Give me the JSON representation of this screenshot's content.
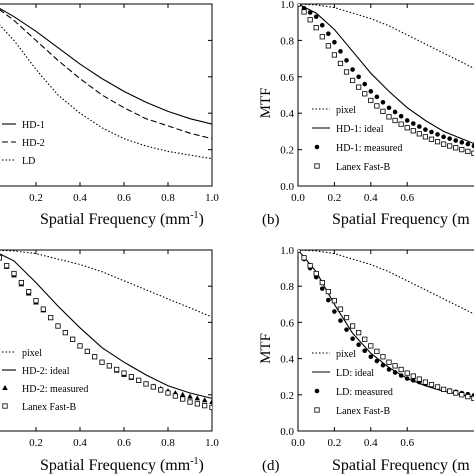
{
  "chart_data": [
    {
      "type": "line",
      "panel": "top-left",
      "label": "",
      "xlabel": "Spatial Frequency (mm",
      "xlabel_sup": "-1",
      "xlim": [
        0.0,
        1.0
      ],
      "ylim": [
        0.0,
        1.0
      ],
      "x_ticks": [
        "0.2",
        "0.4",
        "0.6",
        "0.8",
        "1.0"
      ],
      "y_ticks": [],
      "ylabel": "",
      "x": [
        0.0,
        0.1,
        0.2,
        0.3,
        0.4,
        0.5,
        0.6,
        0.7,
        0.8,
        0.9,
        1.0
      ],
      "series": [
        {
          "name": "HD-1",
          "style": "solid",
          "values": [
            1.0,
            0.93,
            0.85,
            0.76,
            0.67,
            0.59,
            0.52,
            0.46,
            0.41,
            0.37,
            0.34
          ]
        },
        {
          "name": "HD-2",
          "style": "dashed",
          "values": [
            1.0,
            0.91,
            0.8,
            0.69,
            0.59,
            0.5,
            0.43,
            0.37,
            0.33,
            0.29,
            0.26
          ]
        },
        {
          "name": "LD",
          "style": "dotted",
          "values": [
            0.93,
            0.8,
            0.64,
            0.5,
            0.4,
            0.32,
            0.26,
            0.22,
            0.19,
            0.17,
            0.15
          ]
        }
      ],
      "legend": [
        "HD-1",
        "HD-2",
        "LD"
      ]
    },
    {
      "type": "line",
      "panel": "top-right",
      "label": "(b)",
      "xlabel": "Spatial Frequency (m",
      "xlabel_sup": "",
      "xlim": [
        0.0,
        1.0
      ],
      "ylim": [
        0.0,
        1.0
      ],
      "x_ticks": [
        "0.0",
        "0.2",
        "0.4",
        "0.6"
      ],
      "y_ticks": [
        "0.0",
        "0.2",
        "0.4",
        "0.6",
        "0.8",
        "1.0"
      ],
      "ylabel": "MTF",
      "x": [
        0.0,
        0.1,
        0.2,
        0.3,
        0.4,
        0.5,
        0.6,
        0.7,
        0.8,
        0.9,
        1.0
      ],
      "series": [
        {
          "name": "pixel",
          "style": "dotted",
          "values": [
            1.0,
            0.995,
            0.98,
            0.95,
            0.92,
            0.88,
            0.83,
            0.78,
            0.73,
            0.68,
            0.63
          ]
        },
        {
          "name": "HD-1: ideal",
          "style": "solid",
          "values": [
            1.0,
            0.95,
            0.86,
            0.74,
            0.62,
            0.52,
            0.43,
            0.36,
            0.3,
            0.26,
            0.22
          ]
        },
        {
          "name": "HD-1: measured",
          "style": "filled-circle",
          "values": [
            1.0,
            0.93,
            0.79,
            0.64,
            0.52,
            0.43,
            0.36,
            0.31,
            0.27,
            0.24,
            0.21
          ]
        },
        {
          "name": "Lanex Fast-B",
          "style": "open-square",
          "values": [
            1.0,
            0.87,
            0.72,
            0.58,
            0.47,
            0.38,
            0.32,
            0.27,
            0.23,
            0.2,
            0.17
          ]
        }
      ],
      "legend": [
        "pixel",
        "HD-1: ideal",
        "HD-1: measured",
        "Lanex Fast-B"
      ]
    },
    {
      "type": "line",
      "panel": "bottom-left",
      "label": "",
      "xlabel": "Spatial Frequency (mm",
      "xlabel_sup": "-1",
      "xlim": [
        0.0,
        1.0
      ],
      "ylim": [
        0.0,
        1.0
      ],
      "x_ticks": [
        "0.2",
        "0.4",
        "0.6",
        "0.8",
        "1.0"
      ],
      "y_ticks": [],
      "ylabel": "",
      "x": [
        0.0,
        0.1,
        0.2,
        0.3,
        0.4,
        0.5,
        0.6,
        0.7,
        0.8,
        0.9,
        1.0
      ],
      "series": [
        {
          "name": "pixel",
          "style": "dotted",
          "values": [
            1.0,
            0.995,
            0.98,
            0.95,
            0.92,
            0.88,
            0.83,
            0.78,
            0.73,
            0.68,
            0.63
          ]
        },
        {
          "name": "HD-2: ideal",
          "style": "solid",
          "values": [
            1.0,
            0.94,
            0.82,
            0.69,
            0.57,
            0.46,
            0.38,
            0.31,
            0.25,
            0.21,
            0.18
          ]
        },
        {
          "name": "HD-2: measured",
          "style": "filled-triangle",
          "values": [
            1.0,
            0.86,
            0.71,
            0.58,
            0.47,
            0.38,
            0.31,
            0.26,
            0.22,
            0.19,
            0.16
          ]
        },
        {
          "name": "Lanex Fast-B",
          "style": "open-square",
          "values": [
            1.0,
            0.87,
            0.72,
            0.58,
            0.47,
            0.38,
            0.32,
            0.26,
            0.21,
            0.16,
            0.13
          ]
        }
      ],
      "legend": [
        "pixel",
        "HD-2: ideal",
        "HD-2: measured",
        "Lanex Fast-B"
      ]
    },
    {
      "type": "line",
      "panel": "bottom-right",
      "label": "(d)",
      "xlabel": "Spatial Frequency (m",
      "xlabel_sup": "",
      "xlim": [
        0.0,
        1.0
      ],
      "ylim": [
        0.0,
        1.0
      ],
      "x_ticks": [
        "0.0",
        "0.2",
        "0.4",
        "0.6"
      ],
      "y_ticks": [
        "0.0",
        "0.2",
        "0.4",
        "0.6",
        "0.8",
        "1.0"
      ],
      "ylabel": "MTF",
      "x": [
        0.0,
        0.1,
        0.2,
        0.3,
        0.4,
        0.5,
        0.6,
        0.7,
        0.8,
        0.9,
        1.0
      ],
      "series": [
        {
          "name": "pixel",
          "style": "dotted",
          "values": [
            1.0,
            0.995,
            0.98,
            0.95,
            0.92,
            0.88,
            0.83,
            0.78,
            0.73,
            0.68,
            0.63
          ]
        },
        {
          "name": "LD: ideal",
          "style": "solid",
          "values": [
            1.0,
            0.88,
            0.7,
            0.54,
            0.43,
            0.35,
            0.29,
            0.25,
            0.22,
            0.2,
            0.18
          ]
        },
        {
          "name": "LD: measured",
          "style": "filled-circle",
          "values": [
            1.0,
            0.85,
            0.66,
            0.51,
            0.41,
            0.34,
            0.29,
            0.26,
            0.23,
            0.21,
            0.19
          ]
        },
        {
          "name": "Lanex Fast-B",
          "style": "open-square",
          "values": [
            1.0,
            0.87,
            0.72,
            0.58,
            0.47,
            0.38,
            0.32,
            0.27,
            0.23,
            0.2,
            0.17
          ]
        }
      ],
      "legend": [
        "pixel",
        "LD: ideal",
        "LD: measured",
        "Lanex Fast-B"
      ]
    }
  ]
}
